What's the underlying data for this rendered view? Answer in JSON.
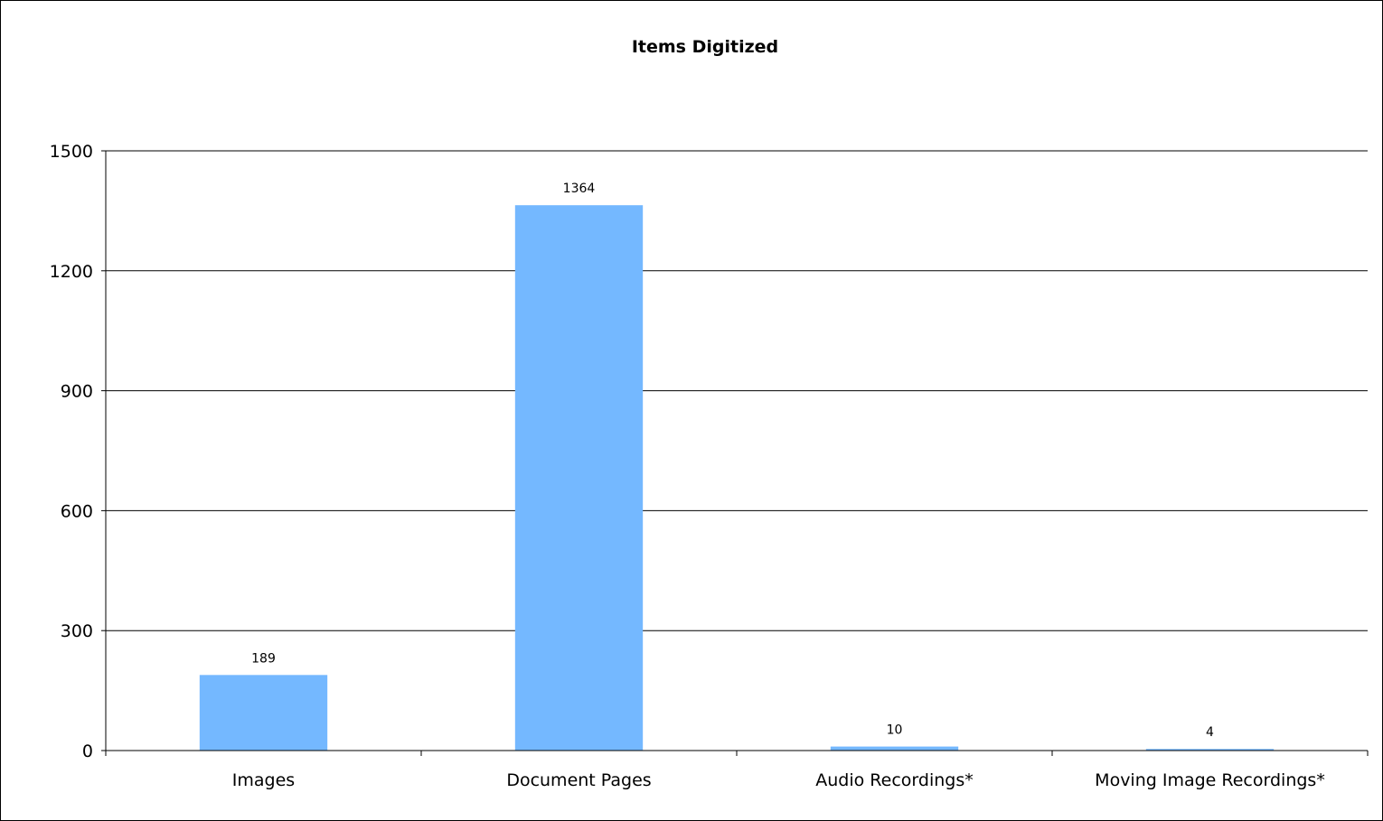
{
  "chart_data": {
    "type": "bar",
    "title": "Items Digitized",
    "xlabel": "",
    "ylabel": "",
    "categories": [
      "Images",
      "Document Pages",
      "Audio Recordings*",
      "Moving Image Recordings*"
    ],
    "values": [
      189,
      1364,
      10,
      4
    ],
    "data_labels": [
      "189",
      "1364",
      "10",
      "4"
    ],
    "ylim": [
      0,
      1500
    ],
    "yticks": [
      0,
      300,
      600,
      900,
      1200,
      1500
    ],
    "ytick_labels": [
      "0",
      "300",
      "600",
      "900",
      "1200",
      "1500"
    ],
    "grid": true,
    "legend": "none",
    "colors": {
      "bar": "#74b8ff",
      "grid": "#000000",
      "axis": "#000000"
    }
  }
}
